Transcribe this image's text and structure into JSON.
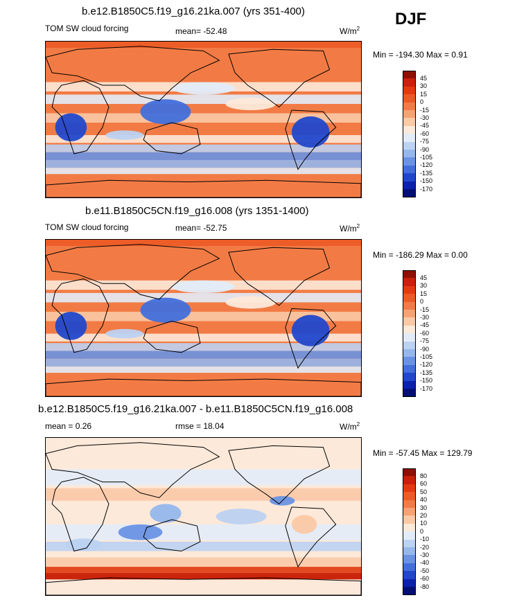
{
  "season": "DJF",
  "panels": [
    {
      "title": "b.e12.B1850C5.f19_g16.21ka.007 (yrs 351-400)",
      "left_label": "TOM SW cloud forcing",
      "center_label": "mean= -52.48",
      "units": "W/m",
      "units_sup": "2",
      "minmax": "Min = -194.30 Max =   0.91",
      "field_dir": 1
    },
    {
      "title": "b.e11.B1850C5CN.f19_g16.008 (yrs 1351-1400)",
      "left_label": "TOM SW cloud forcing",
      "center_label": "mean= -52.75",
      "units": "W/m",
      "units_sup": "2",
      "minmax": "Min = -186.29 Max =   0.00",
      "field_dir": 1
    },
    {
      "title": "b.e12.B1850C5.f19_g16.21ka.007 - b.e11.B1850C5CN.f19_g16.008",
      "left_label": "mean =   0.26",
      "center_label": "rmse =  18.04",
      "units": "W/m",
      "units_sup": "2",
      "minmax": "Min = -57.45 Max = 129.79",
      "field_dir": 0
    }
  ],
  "chart_data": [
    {
      "type": "heatmap",
      "title": "b.e12.B1850C5.f19_g16.21ka.007 (yrs 351-400)",
      "variable": "TOM SW cloud forcing",
      "mean": -52.48,
      "min": -194.3,
      "max": 0.91,
      "units": "W/m2",
      "colorbar_levels": [
        45,
        30,
        15,
        0,
        -15,
        -30,
        -45,
        -60,
        -75,
        -90,
        -105,
        -120,
        -135,
        -150,
        -170
      ],
      "colorbar_colors": [
        "#8f0f04",
        "#c8200a",
        "#e03b10",
        "#ec5a25",
        "#f27b45",
        "#f7a272",
        "#fbc9a6",
        "#fde9d9",
        "#e2ecf8",
        "#bcd2f2",
        "#95b7ec",
        "#6a93e4",
        "#426fdb",
        "#2148cc",
        "#0b22ae",
        "#040f76"
      ]
    },
    {
      "type": "heatmap",
      "title": "b.e11.B1850C5CN.f19_g16.008 (yrs 1351-1400)",
      "variable": "TOM SW cloud forcing",
      "mean": -52.75,
      "min": -186.29,
      "max": 0.0,
      "units": "W/m2",
      "colorbar_levels": [
        45,
        30,
        15,
        0,
        -15,
        -30,
        -45,
        -60,
        -75,
        -90,
        -105,
        -120,
        -135,
        -150,
        -170
      ],
      "colorbar_colors": [
        "#8f0f04",
        "#c8200a",
        "#e03b10",
        "#ec5a25",
        "#f27b45",
        "#f7a272",
        "#fbc9a6",
        "#fde9d9",
        "#e2ecf8",
        "#bcd2f2",
        "#95b7ec",
        "#6a93e4",
        "#426fdb",
        "#2148cc",
        "#0b22ae",
        "#040f76"
      ]
    },
    {
      "type": "heatmap",
      "title": "b.e12.B1850C5.f19_g16.21ka.007 - b.e11.B1850C5CN.f19_g16.008",
      "mean": 0.26,
      "rmse": 18.04,
      "min": -57.45,
      "max": 129.79,
      "units": "W/m2",
      "colorbar_levels": [
        80,
        60,
        50,
        40,
        30,
        20,
        10,
        0,
        -10,
        -20,
        -30,
        -40,
        -50,
        -60,
        -80
      ],
      "colorbar_colors": [
        "#8f0f04",
        "#c8200a",
        "#e03b10",
        "#ec5a25",
        "#f27b45",
        "#f7a272",
        "#fbc9a6",
        "#fde9d9",
        "#e2ecf8",
        "#bcd2f2",
        "#95b7ec",
        "#6a93e4",
        "#426fdb",
        "#2148cc",
        "#0b22ae",
        "#040f76"
      ]
    }
  ]
}
